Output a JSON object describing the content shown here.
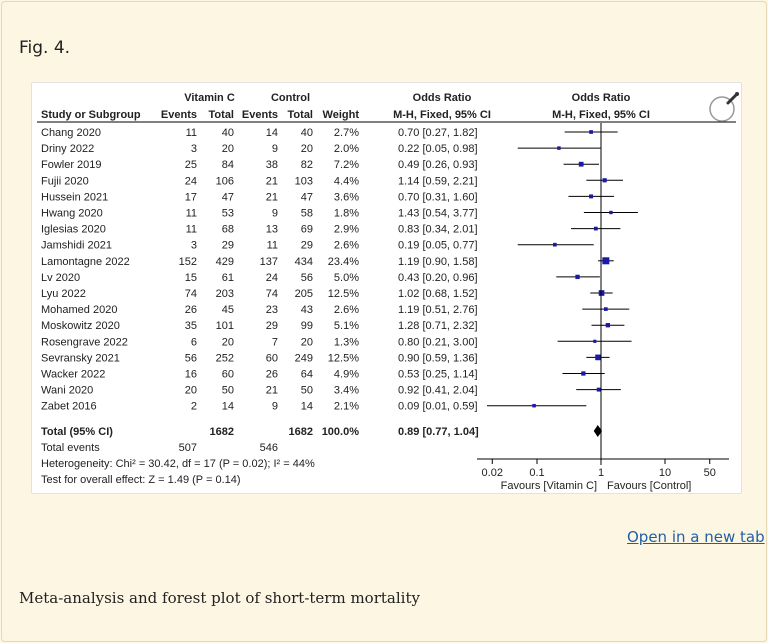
{
  "figure": {
    "label": "Fig. 4.",
    "open_link": "Open in a new tab",
    "caption": "Meta-analysis and forest plot of short-term mortality",
    "zoom_icon": "magnifier-icon"
  },
  "chart_data": {
    "type": "forest",
    "header": {
      "group1": "Vitamin C",
      "group2": "Control",
      "or_col1": "Odds Ratio",
      "or_col2": "Odds Ratio",
      "study_col": "Study or Subgroup",
      "events": "Events",
      "total": "Total",
      "weight": "Weight",
      "method_col1": "M-H, Fixed, 95% CI",
      "method_col2": "M-H, Fixed, 95% CI"
    },
    "studies": [
      {
        "study": "Chang 2020",
        "e1": "11",
        "t1": "40",
        "e2": "14",
        "t2": "40",
        "weight": "2.7%",
        "ci_text": "0.70 [0.27, 1.82]",
        "or": 0.7,
        "lo": 0.27,
        "hi": 1.82,
        "w": 2.7
      },
      {
        "study": "Driny 2022",
        "e1": "3",
        "t1": "20",
        "e2": "9",
        "t2": "20",
        "weight": "2.0%",
        "ci_text": "0.22 [0.05, 0.98]",
        "or": 0.22,
        "lo": 0.05,
        "hi": 0.98,
        "w": 2.0
      },
      {
        "study": "Fowler 2019",
        "e1": "25",
        "t1": "84",
        "e2": "38",
        "t2": "82",
        "weight": "7.2%",
        "ci_text": "0.49 [0.26, 0.93]",
        "or": 0.49,
        "lo": 0.26,
        "hi": 0.93,
        "w": 7.2
      },
      {
        "study": "Fujii 2020",
        "e1": "24",
        "t1": "106",
        "e2": "21",
        "t2": "103",
        "weight": "4.4%",
        "ci_text": "1.14 [0.59, 2.21]",
        "or": 1.14,
        "lo": 0.59,
        "hi": 2.21,
        "w": 4.4
      },
      {
        "study": "Hussein 2021",
        "e1": "17",
        "t1": "47",
        "e2": "21",
        "t2": "47",
        "weight": "3.6%",
        "ci_text": "0.70 [0.31, 1.60]",
        "or": 0.7,
        "lo": 0.31,
        "hi": 1.6,
        "w": 3.6
      },
      {
        "study": "Hwang 2020",
        "e1": "11",
        "t1": "53",
        "e2": "9",
        "t2": "58",
        "weight": "1.8%",
        "ci_text": "1.43 [0.54, 3.77]",
        "or": 1.43,
        "lo": 0.54,
        "hi": 3.77,
        "w": 1.8
      },
      {
        "study": "Iglesias 2020",
        "e1": "11",
        "t1": "68",
        "e2": "13",
        "t2": "69",
        "weight": "2.9%",
        "ci_text": "0.83 [0.34, 2.01]",
        "or": 0.83,
        "lo": 0.34,
        "hi": 2.01,
        "w": 2.9
      },
      {
        "study": "Jamshidi 2021",
        "e1": "3",
        "t1": "29",
        "e2": "11",
        "t2": "29",
        "weight": "2.6%",
        "ci_text": "0.19 [0.05, 0.77]",
        "or": 0.19,
        "lo": 0.05,
        "hi": 0.77,
        "w": 2.6
      },
      {
        "study": "Lamontagne 2022",
        "e1": "152",
        "t1": "429",
        "e2": "137",
        "t2": "434",
        "weight": "23.4%",
        "ci_text": "1.19 [0.90, 1.58]",
        "or": 1.19,
        "lo": 0.9,
        "hi": 1.58,
        "w": 23.4
      },
      {
        "study": "Lv 2020",
        "e1": "15",
        "t1": "61",
        "e2": "24",
        "t2": "56",
        "weight": "5.0%",
        "ci_text": "0.43 [0.20, 0.96]",
        "or": 0.43,
        "lo": 0.2,
        "hi": 0.96,
        "w": 5.0
      },
      {
        "study": "Lyu 2022",
        "e1": "74",
        "t1": "203",
        "e2": "74",
        "t2": "205",
        "weight": "12.5%",
        "ci_text": "1.02 [0.68, 1.52]",
        "or": 1.02,
        "lo": 0.68,
        "hi": 1.52,
        "w": 12.5
      },
      {
        "study": "Mohamed 2020",
        "e1": "26",
        "t1": "45",
        "e2": "23",
        "t2": "43",
        "weight": "2.6%",
        "ci_text": "1.19 [0.51, 2.76]",
        "or": 1.19,
        "lo": 0.51,
        "hi": 2.76,
        "w": 2.6
      },
      {
        "study": "Moskowitz 2020",
        "e1": "35",
        "t1": "101",
        "e2": "29",
        "t2": "99",
        "weight": "5.1%",
        "ci_text": "1.28 [0.71, 2.32]",
        "or": 1.28,
        "lo": 0.71,
        "hi": 2.32,
        "w": 5.1
      },
      {
        "study": "Rosengrave 2022",
        "e1": "6",
        "t1": "20",
        "e2": "7",
        "t2": "20",
        "weight": "1.3%",
        "ci_text": "0.80 [0.21, 3.00]",
        "or": 0.8,
        "lo": 0.21,
        "hi": 3.0,
        "w": 1.3
      },
      {
        "study": "Sevransky 2021",
        "e1": "56",
        "t1": "252",
        "e2": "60",
        "t2": "249",
        "weight": "12.5%",
        "ci_text": "0.90 [0.59, 1.36]",
        "or": 0.9,
        "lo": 0.59,
        "hi": 1.36,
        "w": 12.5
      },
      {
        "study": "Wacker 2022",
        "e1": "16",
        "t1": "60",
        "e2": "26",
        "t2": "64",
        "weight": "4.9%",
        "ci_text": "0.53 [0.25, 1.14]",
        "or": 0.53,
        "lo": 0.25,
        "hi": 1.14,
        "w": 4.9
      },
      {
        "study": "Wani 2020",
        "e1": "20",
        "t1": "50",
        "e2": "21",
        "t2": "50",
        "weight": "3.4%",
        "ci_text": "0.92 [0.41, 2.04]",
        "or": 0.92,
        "lo": 0.41,
        "hi": 2.04,
        "w": 3.4
      },
      {
        "study": "Zabet 2016",
        "e1": "2",
        "t1": "14",
        "e2": "9",
        "t2": "14",
        "weight": "2.1%",
        "ci_text": "0.09 [0.01, 0.59]",
        "or": 0.09,
        "lo": 0.01,
        "hi": 0.59,
        "w": 2.1
      }
    ],
    "total": {
      "label": "Total (95% CI)",
      "t1": "1682",
      "t2": "1682",
      "weight": "100.0%",
      "ci_text": "0.89 [0.77, 1.04]",
      "or": 0.89,
      "lo": 0.77,
      "hi": 1.04
    },
    "total_events": {
      "label": "Total events",
      "e1": "507",
      "e2": "546"
    },
    "heterogeneity": "Heterogeneity: Chi² = 30.42, df = 17 (P = 0.02); I² = 44%",
    "overall_effect": "Test for overall effect: Z = 1.49 (P = 0.14)",
    "x_scale": "log",
    "x_ticks": [
      0.02,
      0.1,
      1,
      10,
      50
    ],
    "x_tick_labels": [
      "0.02",
      "0.1",
      "1",
      "10",
      "50"
    ],
    "xlim": [
      0.02,
      50
    ],
    "favours_left": "Favours [Vitamin C]",
    "favours_right": "Favours [Control]",
    "colors": {
      "marker": "#1a1aa6",
      "line": "#000000",
      "diamond": "#000000"
    }
  }
}
